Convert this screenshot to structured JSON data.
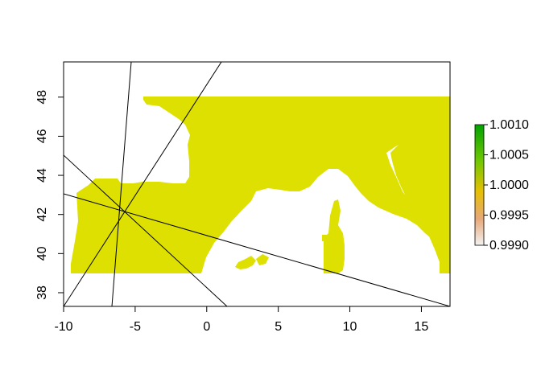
{
  "map": {
    "fill_color": "#dde000",
    "x_ticks": [
      "-10",
      "-5",
      "0",
      "5",
      "10",
      "15"
    ],
    "y_ticks": [
      "38",
      "40",
      "42",
      "44",
      "46",
      "48"
    ],
    "x_range": [
      -10,
      17
    ],
    "y_range": [
      37.3,
      49.8
    ],
    "raster_extent": {
      "lon": [
        -9.5,
        16.9
      ],
      "lat": [
        39.0,
        48.0
      ]
    },
    "center_point": {
      "lon": -5.9,
      "lat": 42.2
    }
  },
  "legend": {
    "ticks": [
      "1.0010",
      "1.0005",
      "1.0000",
      "0.9995",
      "0.9990"
    ],
    "colors": [
      "#d4d4d4",
      "#e8a060",
      "#e0c800",
      "#4bbd00",
      "#00a600"
    ]
  }
}
